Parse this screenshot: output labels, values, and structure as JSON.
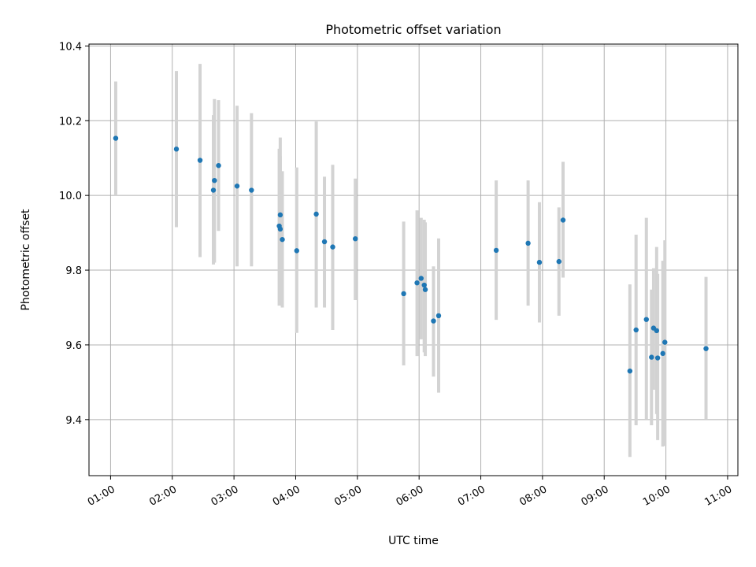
{
  "chart_data": {
    "type": "scatter",
    "title": "Photometric offset variation",
    "xlabel": "UTC time",
    "ylabel": "Photometric offset",
    "grid": true,
    "x_ticks": [
      "01:00",
      "02:00",
      "03:00",
      "04:00",
      "05:00",
      "06:00",
      "07:00",
      "08:00",
      "09:00",
      "10:00",
      "11:00"
    ],
    "y_ticks": [
      "9.4",
      "9.6",
      "9.8",
      "10.0",
      "10.2",
      "10.4"
    ],
    "xlim": [
      "00:39",
      "11:10"
    ],
    "ylim": [
      9.25,
      10.405
    ],
    "series": [
      {
        "color": "#1f77b4",
        "errorbar_color": "#d3d3d3",
        "points": [
          {
            "x": "01:05",
            "y": 10.153,
            "low": 10.0,
            "high": 10.305
          },
          {
            "x": "02:04",
            "y": 10.124,
            "low": 9.915,
            "high": 10.333
          },
          {
            "x": "02:27",
            "y": 10.094,
            "low": 9.835,
            "high": 10.352
          },
          {
            "x": "02:40",
            "y": 10.014,
            "low": 9.815,
            "high": 10.215
          },
          {
            "x": "02:41",
            "y": 10.04,
            "low": 9.82,
            "high": 10.258
          },
          {
            "x": "02:45",
            "y": 10.08,
            "low": 9.905,
            "high": 10.255
          },
          {
            "x": "03:03",
            "y": 10.025,
            "low": 9.81,
            "high": 10.24
          },
          {
            "x": "03:17",
            "y": 10.014,
            "low": 9.81,
            "high": 10.22
          },
          {
            "x": "03:44",
            "y": 9.918,
            "low": 9.705,
            "high": 10.125
          },
          {
            "x": "03:45",
            "y": 9.948,
            "low": 9.745,
            "high": 10.155
          },
          {
            "x": "03:45",
            "y": 9.91,
            "low": 9.715,
            "high": 10.105
          },
          {
            "x": "03:47",
            "y": 9.882,
            "low": 9.7,
            "high": 10.065
          },
          {
            "x": "04:01",
            "y": 9.852,
            "low": 9.632,
            "high": 10.075
          },
          {
            "x": "04:20",
            "y": 9.95,
            "low": 9.7,
            "high": 10.198
          },
          {
            "x": "04:28",
            "y": 9.876,
            "low": 9.7,
            "high": 10.05
          },
          {
            "x": "04:36",
            "y": 9.862,
            "low": 9.64,
            "high": 10.082
          },
          {
            "x": "04:58",
            "y": 9.884,
            "low": 9.72,
            "high": 10.045
          },
          {
            "x": "05:45",
            "y": 9.737,
            "low": 9.545,
            "high": 9.93
          },
          {
            "x": "05:58",
            "y": 9.766,
            "low": 9.57,
            "high": 9.96
          },
          {
            "x": "06:02",
            "y": 9.778,
            "low": 9.615,
            "high": 9.94
          },
          {
            "x": "06:05",
            "y": 9.76,
            "low": 9.58,
            "high": 9.935
          },
          {
            "x": "06:06",
            "y": 9.748,
            "low": 9.57,
            "high": 9.928
          },
          {
            "x": "06:14",
            "y": 9.664,
            "low": 9.515,
            "high": 9.81
          },
          {
            "x": "06:19",
            "y": 9.678,
            "low": 9.472,
            "high": 9.885
          },
          {
            "x": "07:15",
            "y": 9.853,
            "low": 9.667,
            "high": 10.04
          },
          {
            "x": "07:46",
            "y": 9.872,
            "low": 9.705,
            "high": 10.04
          },
          {
            "x": "07:57",
            "y": 9.821,
            "low": 9.66,
            "high": 9.982
          },
          {
            "x": "08:16",
            "y": 9.823,
            "low": 9.678,
            "high": 9.968
          },
          {
            "x": "08:20",
            "y": 9.934,
            "low": 9.78,
            "high": 10.09
          },
          {
            "x": "09:25",
            "y": 9.53,
            "low": 9.3,
            "high": 9.762
          },
          {
            "x": "09:31",
            "y": 9.64,
            "low": 9.385,
            "high": 9.895
          },
          {
            "x": "09:41",
            "y": 9.668,
            "low": 9.4,
            "high": 9.94
          },
          {
            "x": "09:46",
            "y": 9.567,
            "low": 9.385,
            "high": 9.748
          },
          {
            "x": "09:48",
            "y": 9.645,
            "low": 9.48,
            "high": 9.805
          },
          {
            "x": "09:51",
            "y": 9.638,
            "low": 9.415,
            "high": 9.862
          },
          {
            "x": "09:52",
            "y": 9.565,
            "low": 9.345,
            "high": 9.79
          },
          {
            "x": "09:57",
            "y": 9.577,
            "low": 9.328,
            "high": 9.825
          },
          {
            "x": "09:59",
            "y": 9.607,
            "low": 9.33,
            "high": 9.88
          },
          {
            "x": "10:39",
            "y": 9.59,
            "low": 9.4,
            "high": 9.782
          }
        ]
      }
    ]
  }
}
